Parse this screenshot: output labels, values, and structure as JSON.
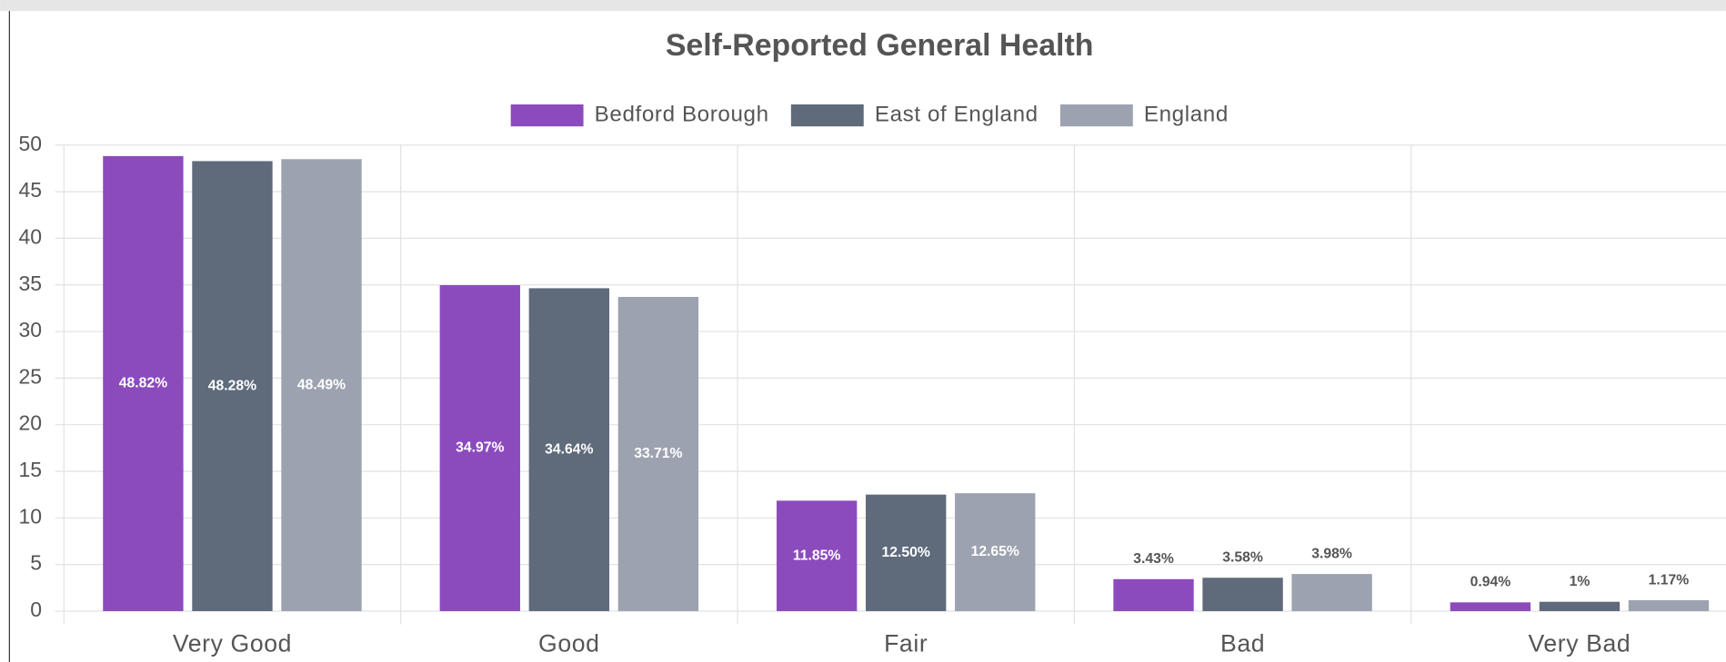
{
  "chart_data": {
    "type": "bar",
    "title": "Self-Reported General Health",
    "categories": [
      "Very Good",
      "Good",
      "Fair",
      "Bad",
      "Very Bad"
    ],
    "series": [
      {
        "name": "Bedford Borough",
        "color": "#8c4bbd",
        "values": [
          48.82,
          34.97,
          11.85,
          3.43,
          0.94
        ],
        "value_labels": [
          "48.82%",
          "34.97%",
          "11.85%",
          "3.43%",
          "0.94%"
        ]
      },
      {
        "name": "East of England",
        "color": "#5f6a7b",
        "values": [
          48.28,
          34.64,
          12.5,
          3.58,
          1
        ],
        "value_labels": [
          "48.28%",
          "34.64%",
          "12.50%",
          "3.58%",
          "1%"
        ]
      },
      {
        "name": "England",
        "color": "#9ca2b0",
        "values": [
          48.49,
          33.71,
          12.65,
          3.98,
          1.17
        ],
        "value_labels": [
          "48.49%",
          "33.71%",
          "12.65%",
          "3.98%",
          "1.17%"
        ]
      }
    ],
    "ylim": [
      0,
      50
    ],
    "yticks": [
      0,
      5,
      10,
      15,
      20,
      25,
      30,
      35,
      40,
      45,
      50
    ],
    "grid": true,
    "legend": "top"
  }
}
